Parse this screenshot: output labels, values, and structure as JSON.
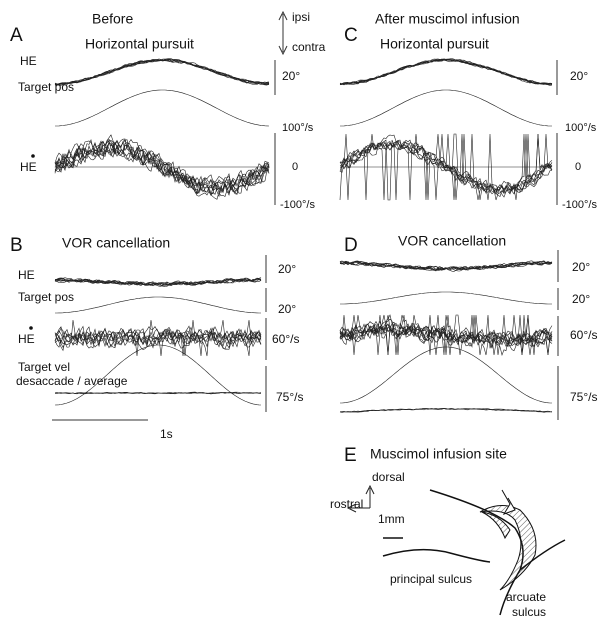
{
  "panel_a": {
    "letter": "A",
    "title": "Before",
    "subtitle": "Horizontal pursuit",
    "he": "HE",
    "target_pos": "Target pos",
    "he_vel": "HE",
    "scale_pos": "20°",
    "vel_top": "100°/s",
    "vel_zero": "0",
    "vel_bottom": "-100°/s"
  },
  "direction": {
    "ipsi": "ipsi",
    "contra": "contra"
  },
  "panel_c": {
    "letter": "C",
    "title": "After muscimol infusion",
    "subtitle": "Horizontal pursuit",
    "scale_pos": "20°",
    "vel_top": "100°/s",
    "vel_zero": "0",
    "vel_bottom": "-100°/s"
  },
  "panel_b": {
    "letter": "B",
    "title": "VOR cancellation",
    "he": "HE",
    "target_pos": "Target pos",
    "he_vel": "HE",
    "target_vel": "Target  vel",
    "desaccade": "desaccade / average",
    "scale_he": "20°",
    "scale_target": "20°",
    "scale_vel": "60°/s",
    "scale_tvel": "75°/s",
    "time": "1s"
  },
  "panel_d": {
    "letter": "D",
    "title": "VOR cancellation",
    "scale_he": "20°",
    "scale_target": "20°",
    "scale_vel": "60°/s",
    "scale_tvel": "75°/s"
  },
  "panel_e": {
    "letter": "E",
    "title": "Muscimol infusion site",
    "dorsal": "dorsal",
    "rostral": "rostral",
    "scale": "1mm",
    "principal": "principal sulcus",
    "arcuate": [
      "arcuate",
      "sulcus"
    ]
  }
}
